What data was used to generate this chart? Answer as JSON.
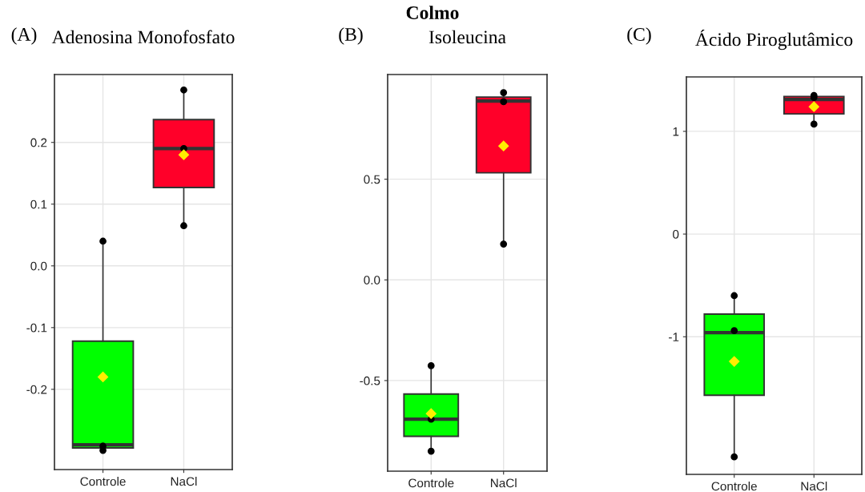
{
  "chart_data": [
    {
      "type": "box",
      "title": "Adenosina Monofosfato",
      "annotations": [
        "Colmo",
        "(A)"
      ],
      "categories": [
        "Controle",
        "NaCl"
      ],
      "ylim": [
        -0.33,
        0.31
      ],
      "yticks": [
        -0.2,
        -0.1,
        {
          "value": 0,
          "label": "0.0"
        },
        0.1,
        0.2
      ],
      "grid": true,
      "series": [
        {
          "colors": [
            "#00ff00",
            "#ff0029"
          ],
          "boxes": [
            {
              "low": -0.298,
              "q1": -0.295,
              "median": -0.29,
              "q3": -0.122,
              "high": 0.035,
              "mean": -0.18
            },
            {
              "low": 0.067,
              "q1": 0.127,
              "median": 0.19,
              "q3": 0.237,
              "high": 0.284,
              "mean": 0.18
            }
          ]
        },
        {
          "type": "scatter",
          "color": "#000000",
          "x": [
            "Controle",
            "Controle",
            "Controle",
            "NaCl",
            "NaCl",
            "NaCl"
          ],
          "values": [
            0.04,
            -0.292,
            -0.299,
            0.285,
            0.19,
            0.065
          ]
        }
      ]
    },
    {
      "type": "box",
      "title": "Isoleucina",
      "annotations": [
        "(B)"
      ],
      "categories": [
        "Controle",
        "NaCl"
      ],
      "ylim": [
        -0.95,
        1.02
      ],
      "yticks": [
        -0.5,
        {
          "value": 0,
          "label": "0.0"
        },
        0.5
      ],
      "grid": true,
      "series": [
        {
          "colors": [
            "#00ff00",
            "#ff0029"
          ],
          "boxes": [
            {
              "low": -0.855,
              "q1": -0.777,
              "median": -0.692,
              "q3": -0.567,
              "high": -0.444,
              "mean": -0.664
            },
            {
              "low": 0.179,
              "q1": 0.532,
              "median": 0.888,
              "q3": 0.908,
              "high": 0.928,
              "mean": 0.665
            }
          ]
        },
        {
          "type": "scatter",
          "color": "#000000",
          "x": [
            "Controle",
            "Controle",
            "Controle",
            "NaCl",
            "NaCl",
            "NaCl"
          ],
          "values": [
            -0.426,
            -0.692,
            -0.851,
            0.93,
            0.885,
            0.178
          ]
        }
      ]
    },
    {
      "type": "box",
      "title": "Ácido Piroglutâmico",
      "annotations": [
        "(C)"
      ],
      "categories": [
        "Controle",
        "NaCl"
      ],
      "ylim": [
        -2.34,
        1.53
      ],
      "yticks": [
        -1,
        0,
        1
      ],
      "grid": true,
      "series": [
        {
          "colors": [
            "#00ff00",
            "#ff0029"
          ],
          "boxes": [
            {
              "low": -2.16,
              "q1": -1.57,
              "median": -0.96,
              "q3": -0.78,
              "high": -0.59,
              "mean": -1.24
            },
            {
              "low": 1.05,
              "q1": 1.17,
              "median": 1.31,
              "q3": 1.34,
              "high": 1.37,
              "mean": 1.24
            }
          ]
        },
        {
          "type": "scatter",
          "color": "#000000",
          "x": [
            "Controle",
            "Controle",
            "Controle",
            "NaCl",
            "NaCl",
            "NaCl"
          ],
          "values": [
            -0.6,
            -0.94,
            -2.17,
            1.33,
            1.35,
            1.07
          ]
        }
      ]
    }
  ]
}
